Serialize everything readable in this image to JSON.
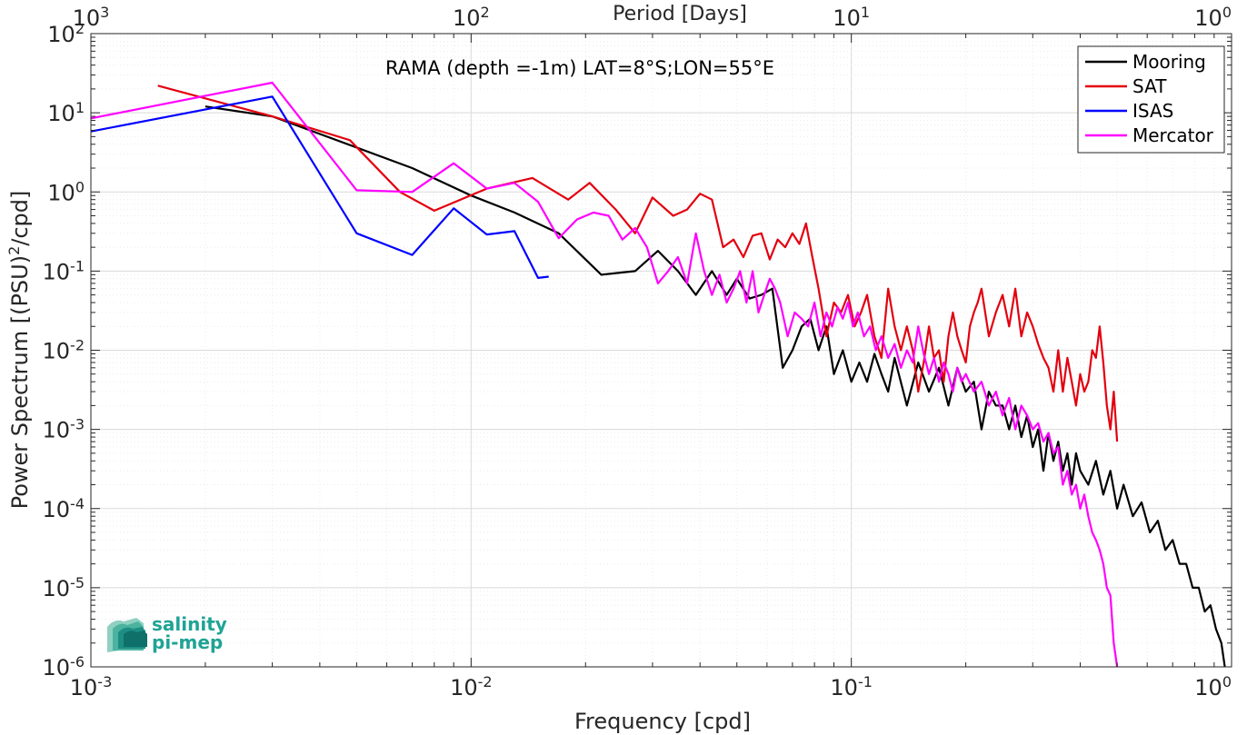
{
  "chart_data": {
    "type": "line",
    "title": "RAMA (depth =-1m) LAT=8°S;LON=55°E",
    "xlabel": "Frequency [cpd]",
    "ylabel": "Power Spectrum [(PSU)",
    "ylabel_sup": "2",
    "ylabel_tail": "/cpd]",
    "top_xlabel": "Period [Days]",
    "x_scale": "log",
    "y_scale": "log",
    "xlim": [
      0.001,
      1
    ],
    "ylim": [
      1e-06,
      100
    ],
    "grid": true,
    "legend_position": "top-right",
    "x_ticks": [
      {
        "value": 0.001,
        "base": "10",
        "exp": "-3"
      },
      {
        "value": 0.01,
        "base": "10",
        "exp": "-2"
      },
      {
        "value": 0.1,
        "base": "10",
        "exp": "-1"
      },
      {
        "value": 1,
        "base": "10",
        "exp": "0"
      }
    ],
    "top_ticks": [
      {
        "value": 0.001,
        "base": "10",
        "exp": "3"
      },
      {
        "value": 0.01,
        "base": "10",
        "exp": "2"
      },
      {
        "value": 0.1,
        "base": "10",
        "exp": "1"
      },
      {
        "value": 1,
        "base": "10",
        "exp": "0"
      }
    ],
    "y_ticks": [
      {
        "value": 100,
        "base": "10",
        "exp": "2"
      },
      {
        "value": 10,
        "base": "10",
        "exp": "1"
      },
      {
        "value": 1,
        "base": "10",
        "exp": "0"
      },
      {
        "value": 0.1,
        "base": "10",
        "exp": "-1"
      },
      {
        "value": 0.01,
        "base": "10",
        "exp": "-2"
      },
      {
        "value": 0.001,
        "base": "10",
        "exp": "-3"
      },
      {
        "value": 0.0001,
        "base": "10",
        "exp": "-4"
      },
      {
        "value": 1e-05,
        "base": "10",
        "exp": "-5"
      },
      {
        "value": 1e-06,
        "base": "10",
        "exp": "-6"
      }
    ],
    "series": [
      {
        "name": "Mooring",
        "color": "#000000",
        "x": [
          0.002,
          0.003,
          0.007,
          0.01,
          0.013,
          0.017,
          0.022,
          0.027,
          0.031,
          0.035,
          0.039,
          0.043,
          0.047,
          0.05,
          0.054,
          0.058,
          0.062,
          0.066,
          0.07,
          0.074,
          0.078,
          0.082,
          0.086,
          0.09,
          0.095,
          0.1,
          0.105,
          0.11,
          0.115,
          0.12,
          0.125,
          0.13,
          0.14,
          0.15,
          0.16,
          0.17,
          0.18,
          0.19,
          0.2,
          0.21,
          0.22,
          0.23,
          0.24,
          0.25,
          0.26,
          0.27,
          0.28,
          0.29,
          0.3,
          0.31,
          0.32,
          0.33,
          0.34,
          0.35,
          0.36,
          0.37,
          0.38,
          0.39,
          0.4,
          0.42,
          0.44,
          0.46,
          0.48,
          0.5,
          0.52,
          0.55,
          0.58,
          0.61,
          0.64,
          0.67,
          0.7,
          0.73,
          0.76,
          0.79,
          0.82,
          0.85,
          0.88,
          0.91,
          0.94,
          0.96
        ],
        "values": [
          12,
          9,
          2,
          0.9,
          0.55,
          0.3,
          0.09,
          0.1,
          0.18,
          0.1,
          0.05,
          0.1,
          0.05,
          0.08,
          0.045,
          0.05,
          0.06,
          0.006,
          0.01,
          0.02,
          0.025,
          0.01,
          0.02,
          0.005,
          0.01,
          0.004,
          0.007,
          0.004,
          0.009,
          0.005,
          0.003,
          0.008,
          0.002,
          0.007,
          0.003,
          0.006,
          0.002,
          0.006,
          0.003,
          0.004,
          0.001,
          0.003,
          0.002,
          0.002,
          0.001,
          0.002,
          0.0008,
          0.0015,
          0.0006,
          0.001,
          0.0003,
          0.0009,
          0.0004,
          0.0007,
          0.0003,
          0.0005,
          0.0002,
          0.0005,
          0.0003,
          0.0002,
          0.0004,
          0.00015,
          0.0003,
          0.0001,
          0.0002,
          8e-05,
          0.00012,
          5e-05,
          7e-05,
          3e-05,
          4e-05,
          2e-05,
          2e-05,
          1e-05,
          1e-05,
          5e-06,
          6e-06,
          3e-06,
          2e-06,
          1e-06
        ]
      },
      {
        "name": "SAT",
        "color": "#e3000f",
        "x": [
          0.0015,
          0.003,
          0.0048,
          0.0065,
          0.008,
          0.011,
          0.0145,
          0.018,
          0.0205,
          0.024,
          0.027,
          0.03,
          0.034,
          0.037,
          0.04,
          0.043,
          0.046,
          0.049,
          0.052,
          0.055,
          0.058,
          0.061,
          0.064,
          0.067,
          0.07,
          0.073,
          0.076,
          0.079,
          0.082,
          0.086,
          0.09,
          0.094,
          0.098,
          0.102,
          0.106,
          0.11,
          0.115,
          0.12,
          0.125,
          0.13,
          0.135,
          0.14,
          0.145,
          0.15,
          0.155,
          0.16,
          0.165,
          0.17,
          0.175,
          0.18,
          0.185,
          0.19,
          0.195,
          0.2,
          0.205,
          0.21,
          0.215,
          0.22,
          0.23,
          0.24,
          0.25,
          0.26,
          0.27,
          0.28,
          0.29,
          0.3,
          0.31,
          0.32,
          0.33,
          0.34,
          0.35,
          0.36,
          0.37,
          0.38,
          0.39,
          0.4,
          0.41,
          0.42,
          0.43,
          0.44,
          0.45,
          0.46,
          0.47,
          0.48,
          0.49,
          0.5
        ],
        "values": [
          22,
          9,
          4.5,
          1,
          0.58,
          1.1,
          1.5,
          0.8,
          1.3,
          0.6,
          0.3,
          0.85,
          0.5,
          0.6,
          0.95,
          0.8,
          0.2,
          0.25,
          0.15,
          0.28,
          0.3,
          0.14,
          0.25,
          0.2,
          0.3,
          0.22,
          0.4,
          0.15,
          0.06,
          0.015,
          0.04,
          0.03,
          0.05,
          0.02,
          0.03,
          0.05,
          0.015,
          0.008,
          0.06,
          0.02,
          0.01,
          0.02,
          0.01,
          0.003,
          0.007,
          0.02,
          0.008,
          0.01,
          0.004,
          0.015,
          0.03,
          0.015,
          0.01,
          0.007,
          0.02,
          0.03,
          0.04,
          0.06,
          0.015,
          0.03,
          0.05,
          0.02,
          0.06,
          0.015,
          0.03,
          0.02,
          0.012,
          0.008,
          0.006,
          0.003,
          0.01,
          0.003,
          0.008,
          0.004,
          0.002,
          0.005,
          0.003,
          0.004,
          0.01,
          0.008,
          0.02,
          0.007,
          0.002,
          0.001,
          0.003,
          0.0007
        ]
      },
      {
        "name": "ISAS",
        "color": "#0000ff",
        "x": [
          0.001,
          0.003,
          0.005,
          0.007,
          0.009,
          0.011,
          0.013,
          0.015,
          0.016
        ],
        "values": [
          5.8,
          16,
          0.3,
          0.16,
          0.62,
          0.29,
          0.32,
          0.082,
          0.085
        ]
      },
      {
        "name": "Mercator",
        "color": "#ff00ff",
        "x": [
          0.001,
          0.003,
          0.005,
          0.007,
          0.009,
          0.011,
          0.013,
          0.015,
          0.017,
          0.019,
          0.021,
          0.023,
          0.025,
          0.027,
          0.029,
          0.031,
          0.033,
          0.035,
          0.037,
          0.039,
          0.041,
          0.043,
          0.045,
          0.047,
          0.049,
          0.051,
          0.053,
          0.055,
          0.057,
          0.059,
          0.061,
          0.063,
          0.065,
          0.068,
          0.071,
          0.074,
          0.077,
          0.08,
          0.083,
          0.086,
          0.089,
          0.092,
          0.095,
          0.098,
          0.101,
          0.104,
          0.108,
          0.112,
          0.116,
          0.12,
          0.125,
          0.13,
          0.135,
          0.14,
          0.145,
          0.15,
          0.155,
          0.16,
          0.165,
          0.17,
          0.175,
          0.18,
          0.185,
          0.19,
          0.195,
          0.2,
          0.21,
          0.22,
          0.23,
          0.24,
          0.25,
          0.26,
          0.27,
          0.28,
          0.29,
          0.3,
          0.31,
          0.32,
          0.33,
          0.34,
          0.35,
          0.36,
          0.37,
          0.38,
          0.39,
          0.4,
          0.41,
          0.42,
          0.43,
          0.44,
          0.45,
          0.46,
          0.47,
          0.48,
          0.49,
          0.5
        ],
        "values": [
          8.5,
          24,
          1.05,
          1.0,
          2.3,
          1.1,
          1.3,
          0.75,
          0.26,
          0.45,
          0.55,
          0.5,
          0.25,
          0.35,
          0.2,
          0.07,
          0.1,
          0.15,
          0.07,
          0.3,
          0.1,
          0.05,
          0.09,
          0.04,
          0.06,
          0.1,
          0.04,
          0.1,
          0.03,
          0.05,
          0.08,
          0.06,
          0.04,
          0.015,
          0.03,
          0.025,
          0.02,
          0.04,
          0.015,
          0.03,
          0.02,
          0.035,
          0.025,
          0.04,
          0.02,
          0.03,
          0.015,
          0.02,
          0.01,
          0.015,
          0.008,
          0.012,
          0.006,
          0.01,
          0.007,
          0.02,
          0.009,
          0.005,
          0.008,
          0.004,
          0.007,
          0.005,
          0.003,
          0.006,
          0.004,
          0.005,
          0.003,
          0.004,
          0.002,
          0.003,
          0.0015,
          0.0025,
          0.001,
          0.002,
          0.0015,
          0.001,
          0.0012,
          0.0007,
          0.0009,
          0.0005,
          0.0006,
          0.0002,
          0.0003,
          0.00015,
          0.0002,
          0.0001,
          0.00015,
          8e-05,
          5e-05,
          4e-05,
          3e-05,
          2e-05,
          1e-05,
          8e-06,
          2e-06,
          1e-06
        ]
      }
    ]
  },
  "logo": {
    "line1": "salinity",
    "line2": "pi-mep",
    "color": "#1fa394"
  }
}
